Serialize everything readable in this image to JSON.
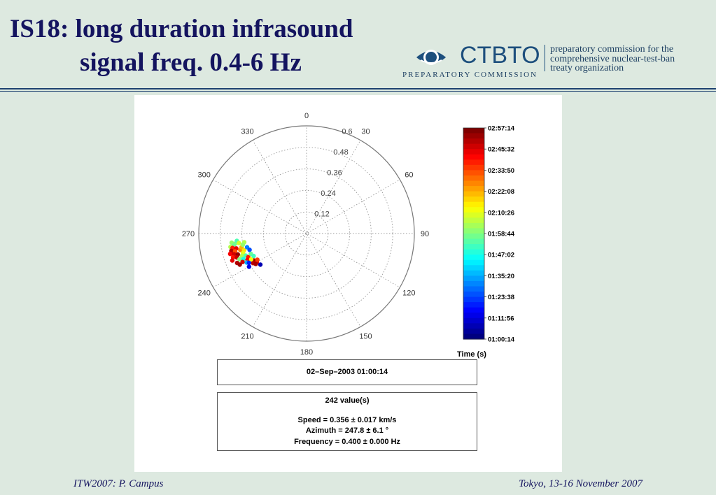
{
  "slide": {
    "title_line1": "IS18: long duration infrasound",
    "title_line2": "signal freq. 0.4-6 Hz",
    "footer_left": "ITW2007: P. Campus",
    "footer_right": "Tokyo, 13-16 November 2007"
  },
  "logo": {
    "word": "CTBTO",
    "sub": "PREPARATORY COMMISSION",
    "text_lines": [
      "preparatory commission for the",
      "comprehensive nuclear-test-ban",
      "treaty organization"
    ],
    "color": "#1d4f7d"
  },
  "chart_data": {
    "type": "scatter",
    "projection": "polar",
    "angle_ticks": [
      "0",
      "30",
      "60",
      "90",
      "120",
      "150",
      "180",
      "210",
      "240",
      "270",
      "300",
      "330"
    ],
    "radial_ticks": [
      "0.12",
      "0.24",
      "0.36",
      "0.48",
      "0.6"
    ],
    "rmax": 0.6,
    "grid": true,
    "colorbar": {
      "label": "Time (s)",
      "ticks": [
        "02:57:14",
        "02:45:32",
        "02:33:50",
        "02:22:08",
        "02:10:26",
        "01:58:44",
        "01:47:02",
        "01:35:20",
        "01:23:38",
        "01:11:56",
        "01:00:14"
      ],
      "colormap": "jet"
    },
    "points": [
      {
        "az": 262,
        "r": 0.4,
        "c": 0.5
      },
      {
        "az": 263,
        "r": 0.42,
        "c": 0.52
      },
      {
        "az": 261,
        "r": 0.41,
        "c": 0.48
      },
      {
        "az": 264,
        "r": 0.39,
        "c": 0.45
      },
      {
        "az": 260,
        "r": 0.43,
        "c": 0.55
      },
      {
        "az": 262,
        "r": 0.38,
        "c": 0.58
      },
      {
        "az": 259,
        "r": 0.42,
        "c": 0.85
      },
      {
        "az": 258,
        "r": 0.4,
        "c": 0.9
      },
      {
        "az": 257,
        "r": 0.43,
        "c": 0.95
      },
      {
        "az": 256,
        "r": 0.41,
        "c": 0.8
      },
      {
        "az": 255,
        "r": 0.44,
        "c": 0.88
      },
      {
        "az": 254,
        "r": 0.42,
        "c": 0.92
      },
      {
        "az": 256,
        "r": 0.38,
        "c": 0.75
      },
      {
        "az": 258,
        "r": 0.37,
        "c": 0.7
      },
      {
        "az": 253,
        "r": 0.4,
        "c": 0.98
      },
      {
        "az": 252,
        "r": 0.43,
        "c": 0.86
      },
      {
        "az": 251,
        "r": 0.41,
        "c": 0.93
      },
      {
        "az": 250,
        "r": 0.44,
        "c": 0.9
      },
      {
        "az": 255,
        "r": 0.36,
        "c": 0.65
      },
      {
        "az": 253,
        "r": 0.37,
        "c": 0.6
      },
      {
        "az": 251,
        "r": 0.38,
        "c": 0.55
      },
      {
        "az": 249,
        "r": 0.4,
        "c": 0.5
      },
      {
        "az": 250,
        "r": 0.36,
        "c": 0.45
      },
      {
        "az": 248,
        "r": 0.38,
        "c": 0.4
      },
      {
        "az": 247,
        "r": 0.42,
        "c": 0.95
      },
      {
        "az": 246,
        "r": 0.39,
        "c": 0.92
      },
      {
        "az": 245,
        "r": 0.41,
        "c": 0.97
      },
      {
        "az": 248,
        "r": 0.35,
        "c": 0.85
      },
      {
        "az": 246,
        "r": 0.36,
        "c": 0.88
      },
      {
        "az": 244,
        "r": 0.37,
        "c": 0.3
      },
      {
        "az": 243,
        "r": 0.33,
        "c": 0.98
      },
      {
        "az": 241,
        "r": 0.34,
        "c": 0.94
      },
      {
        "az": 240,
        "r": 0.32,
        "c": 0.9
      },
      {
        "az": 239,
        "r": 0.33,
        "c": 0.96
      },
      {
        "az": 242,
        "r": 0.31,
        "c": 0.82
      },
      {
        "az": 245,
        "r": 0.34,
        "c": 0.62
      },
      {
        "az": 243,
        "r": 0.36,
        "c": 0.15
      },
      {
        "az": 240,
        "r": 0.37,
        "c": 0.1
      },
      {
        "az": 236,
        "r": 0.31,
        "c": 0.05
      },
      {
        "az": 262,
        "r": 0.35,
        "c": 0.55
      },
      {
        "az": 260,
        "r": 0.36,
        "c": 0.52
      },
      {
        "az": 257,
        "r": 0.34,
        "c": 0.25
      },
      {
        "az": 254,
        "r": 0.33,
        "c": 0.2
      },
      {
        "az": 250,
        "r": 0.33,
        "c": 0.48
      },
      {
        "az": 247,
        "r": 0.32,
        "c": 0.44
      }
    ]
  },
  "datebox": {
    "text": "02–Sep–2003 01:00:14"
  },
  "stats": {
    "count": "242 value(s)",
    "speed": "Speed = 0.356 ± 0.017 km/s",
    "azimuth": "Azimuth = 247.8 ± 6.1 °",
    "frequency": "Frequency = 0.400 ± 0.000 Hz"
  }
}
